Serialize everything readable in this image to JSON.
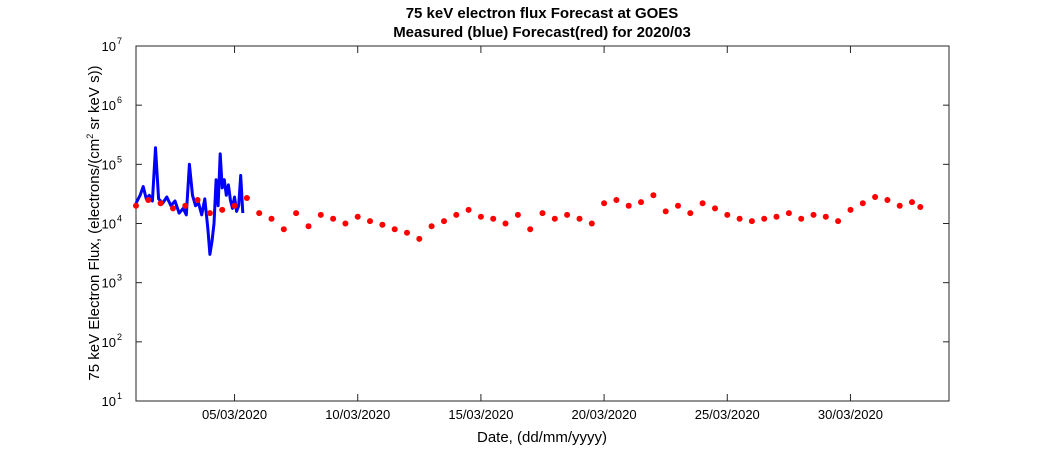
{
  "chart_data": {
    "type": "scatter",
    "title": "75 keV electron flux Forecast at GOES",
    "subtitle": "Measured (blue) Forecast(red) for 2020/03",
    "xlabel": "Date, (dd/mm/yyyy)",
    "ylabel_parts": [
      "75 keV Electron Flux, (electrons/(cm",
      "2",
      " sr keV s))"
    ],
    "x_scale": "date",
    "xlim": [
      "2020-03-01",
      "2020-04-03"
    ],
    "x_ticks": [
      "05/03/2020",
      "10/03/2020",
      "15/03/2020",
      "20/03/2020",
      "25/03/2020",
      "30/03/2020"
    ],
    "x_tick_dates": [
      "2020-03-05",
      "2020-03-10",
      "2020-03-15",
      "2020-03-20",
      "2020-03-25",
      "2020-03-30"
    ],
    "y_scale": "log",
    "ylim": [
      10,
      10000000
    ],
    "y_ticks": [
      {
        "value": 10,
        "base": "10",
        "exp": "1"
      },
      {
        "value": 100,
        "base": "10",
        "exp": "2"
      },
      {
        "value": 1000,
        "base": "10",
        "exp": "3"
      },
      {
        "value": 10000,
        "base": "10",
        "exp": "4"
      },
      {
        "value": 100000,
        "base": "10",
        "exp": "5"
      },
      {
        "value": 1000000,
        "base": "10",
        "exp": "6"
      },
      {
        "value": 10000000,
        "base": "10",
        "exp": "7"
      }
    ],
    "grid": false,
    "series": [
      {
        "style": "line",
        "color": "#0000ff",
        "points": [
          [
            "2020-03-01 00:00",
            22000
          ],
          [
            "2020-03-01 04:00",
            30000
          ],
          [
            "2020-03-01 07:00",
            42000
          ],
          [
            "2020-03-01 10:00",
            26000
          ],
          [
            "2020-03-01 13:00",
            30000
          ],
          [
            "2020-03-01 16:00",
            24000
          ],
          [
            "2020-03-01 19:00",
            190000
          ],
          [
            "2020-03-01 22:00",
            26000
          ],
          [
            "2020-03-02 02:00",
            22000
          ],
          [
            "2020-03-02 06:00",
            28000
          ],
          [
            "2020-03-02 10:00",
            20000
          ],
          [
            "2020-03-02 14:00",
            24000
          ],
          [
            "2020-03-02 18:00",
            15000
          ],
          [
            "2020-03-02 22:00",
            18000
          ],
          [
            "2020-03-03 01:00",
            14000
          ],
          [
            "2020-03-03 04:00",
            100000
          ],
          [
            "2020-03-03 07:00",
            30000
          ],
          [
            "2020-03-03 10:00",
            20000
          ],
          [
            "2020-03-03 13:00",
            22000
          ],
          [
            "2020-03-03 16:00",
            14000
          ],
          [
            "2020-03-03 19:00",
            26000
          ],
          [
            "2020-03-03 22:00",
            8000
          ],
          [
            "2020-03-04 00:00",
            3000
          ],
          [
            "2020-03-04 02:00",
            5000
          ],
          [
            "2020-03-04 04:00",
            10000
          ],
          [
            "2020-03-04 06:00",
            55000
          ],
          [
            "2020-03-04 08:00",
            20000
          ],
          [
            "2020-03-04 10:00",
            150000
          ],
          [
            "2020-03-04 12:00",
            40000
          ],
          [
            "2020-03-04 14:00",
            55000
          ],
          [
            "2020-03-04 16:00",
            30000
          ],
          [
            "2020-03-04 18:00",
            45000
          ],
          [
            "2020-03-04 20:00",
            25000
          ],
          [
            "2020-03-04 22:00",
            18000
          ],
          [
            "2020-03-05 00:00",
            28000
          ],
          [
            "2020-03-05 02:00",
            16000
          ],
          [
            "2020-03-05 04:00",
            20000
          ],
          [
            "2020-03-05 06:00",
            65000
          ],
          [
            "2020-03-05 08:00",
            15000
          ]
        ]
      },
      {
        "style": "markers",
        "color": "#ff0000",
        "points": [
          [
            "2020-03-01 00:00",
            20000
          ],
          [
            "2020-03-01 12:00",
            25000
          ],
          [
            "2020-03-02 00:00",
            22000
          ],
          [
            "2020-03-02 12:00",
            18000
          ],
          [
            "2020-03-03 00:00",
            20000
          ],
          [
            "2020-03-03 12:00",
            25000
          ],
          [
            "2020-03-04 00:00",
            15000
          ],
          [
            "2020-03-04 12:00",
            17000
          ],
          [
            "2020-03-05 00:00",
            20000
          ],
          [
            "2020-03-05 12:00",
            27000
          ],
          [
            "2020-03-06 00:00",
            15000
          ],
          [
            "2020-03-06 12:00",
            12000
          ],
          [
            "2020-03-07 00:00",
            8000
          ],
          [
            "2020-03-07 12:00",
            15000
          ],
          [
            "2020-03-08 00:00",
            9000
          ],
          [
            "2020-03-08 12:00",
            14000
          ],
          [
            "2020-03-09 00:00",
            12000
          ],
          [
            "2020-03-09 12:00",
            10000
          ],
          [
            "2020-03-10 00:00",
            13000
          ],
          [
            "2020-03-10 12:00",
            11000
          ],
          [
            "2020-03-11 00:00",
            9500
          ],
          [
            "2020-03-11 12:00",
            8000
          ],
          [
            "2020-03-12 00:00",
            7000
          ],
          [
            "2020-03-12 12:00",
            5500
          ],
          [
            "2020-03-13 00:00",
            9000
          ],
          [
            "2020-03-13 12:00",
            11000
          ],
          [
            "2020-03-14 00:00",
            14000
          ],
          [
            "2020-03-14 12:00",
            17000
          ],
          [
            "2020-03-15 00:00",
            13000
          ],
          [
            "2020-03-15 12:00",
            12000
          ],
          [
            "2020-03-16 00:00",
            10000
          ],
          [
            "2020-03-16 12:00",
            14000
          ],
          [
            "2020-03-17 00:00",
            8000
          ],
          [
            "2020-03-17 12:00",
            15000
          ],
          [
            "2020-03-18 00:00",
            12000
          ],
          [
            "2020-03-18 12:00",
            14000
          ],
          [
            "2020-03-19 00:00",
            12000
          ],
          [
            "2020-03-19 12:00",
            10000
          ],
          [
            "2020-03-20 00:00",
            22000
          ],
          [
            "2020-03-20 12:00",
            25000
          ],
          [
            "2020-03-21 00:00",
            20000
          ],
          [
            "2020-03-21 12:00",
            23000
          ],
          [
            "2020-03-22 00:00",
            30000
          ],
          [
            "2020-03-22 12:00",
            16000
          ],
          [
            "2020-03-23 00:00",
            20000
          ],
          [
            "2020-03-23 12:00",
            15000
          ],
          [
            "2020-03-24 00:00",
            22000
          ],
          [
            "2020-03-24 12:00",
            18000
          ],
          [
            "2020-03-25 00:00",
            14000
          ],
          [
            "2020-03-25 12:00",
            12000
          ],
          [
            "2020-03-26 00:00",
            11000
          ],
          [
            "2020-03-26 12:00",
            12000
          ],
          [
            "2020-03-27 00:00",
            13000
          ],
          [
            "2020-03-27 12:00",
            15000
          ],
          [
            "2020-03-28 00:00",
            12000
          ],
          [
            "2020-03-28 12:00",
            14000
          ],
          [
            "2020-03-29 00:00",
            13000
          ],
          [
            "2020-03-29 12:00",
            11000
          ],
          [
            "2020-03-30 00:00",
            17000
          ],
          [
            "2020-03-30 12:00",
            22000
          ],
          [
            "2020-03-31 00:00",
            28000
          ],
          [
            "2020-03-31 12:00",
            25000
          ],
          [
            "2020-04-01 00:00",
            20000
          ],
          [
            "2020-04-01 12:00",
            23000
          ],
          [
            "2020-04-01 20:00",
            19000
          ]
        ]
      }
    ]
  }
}
